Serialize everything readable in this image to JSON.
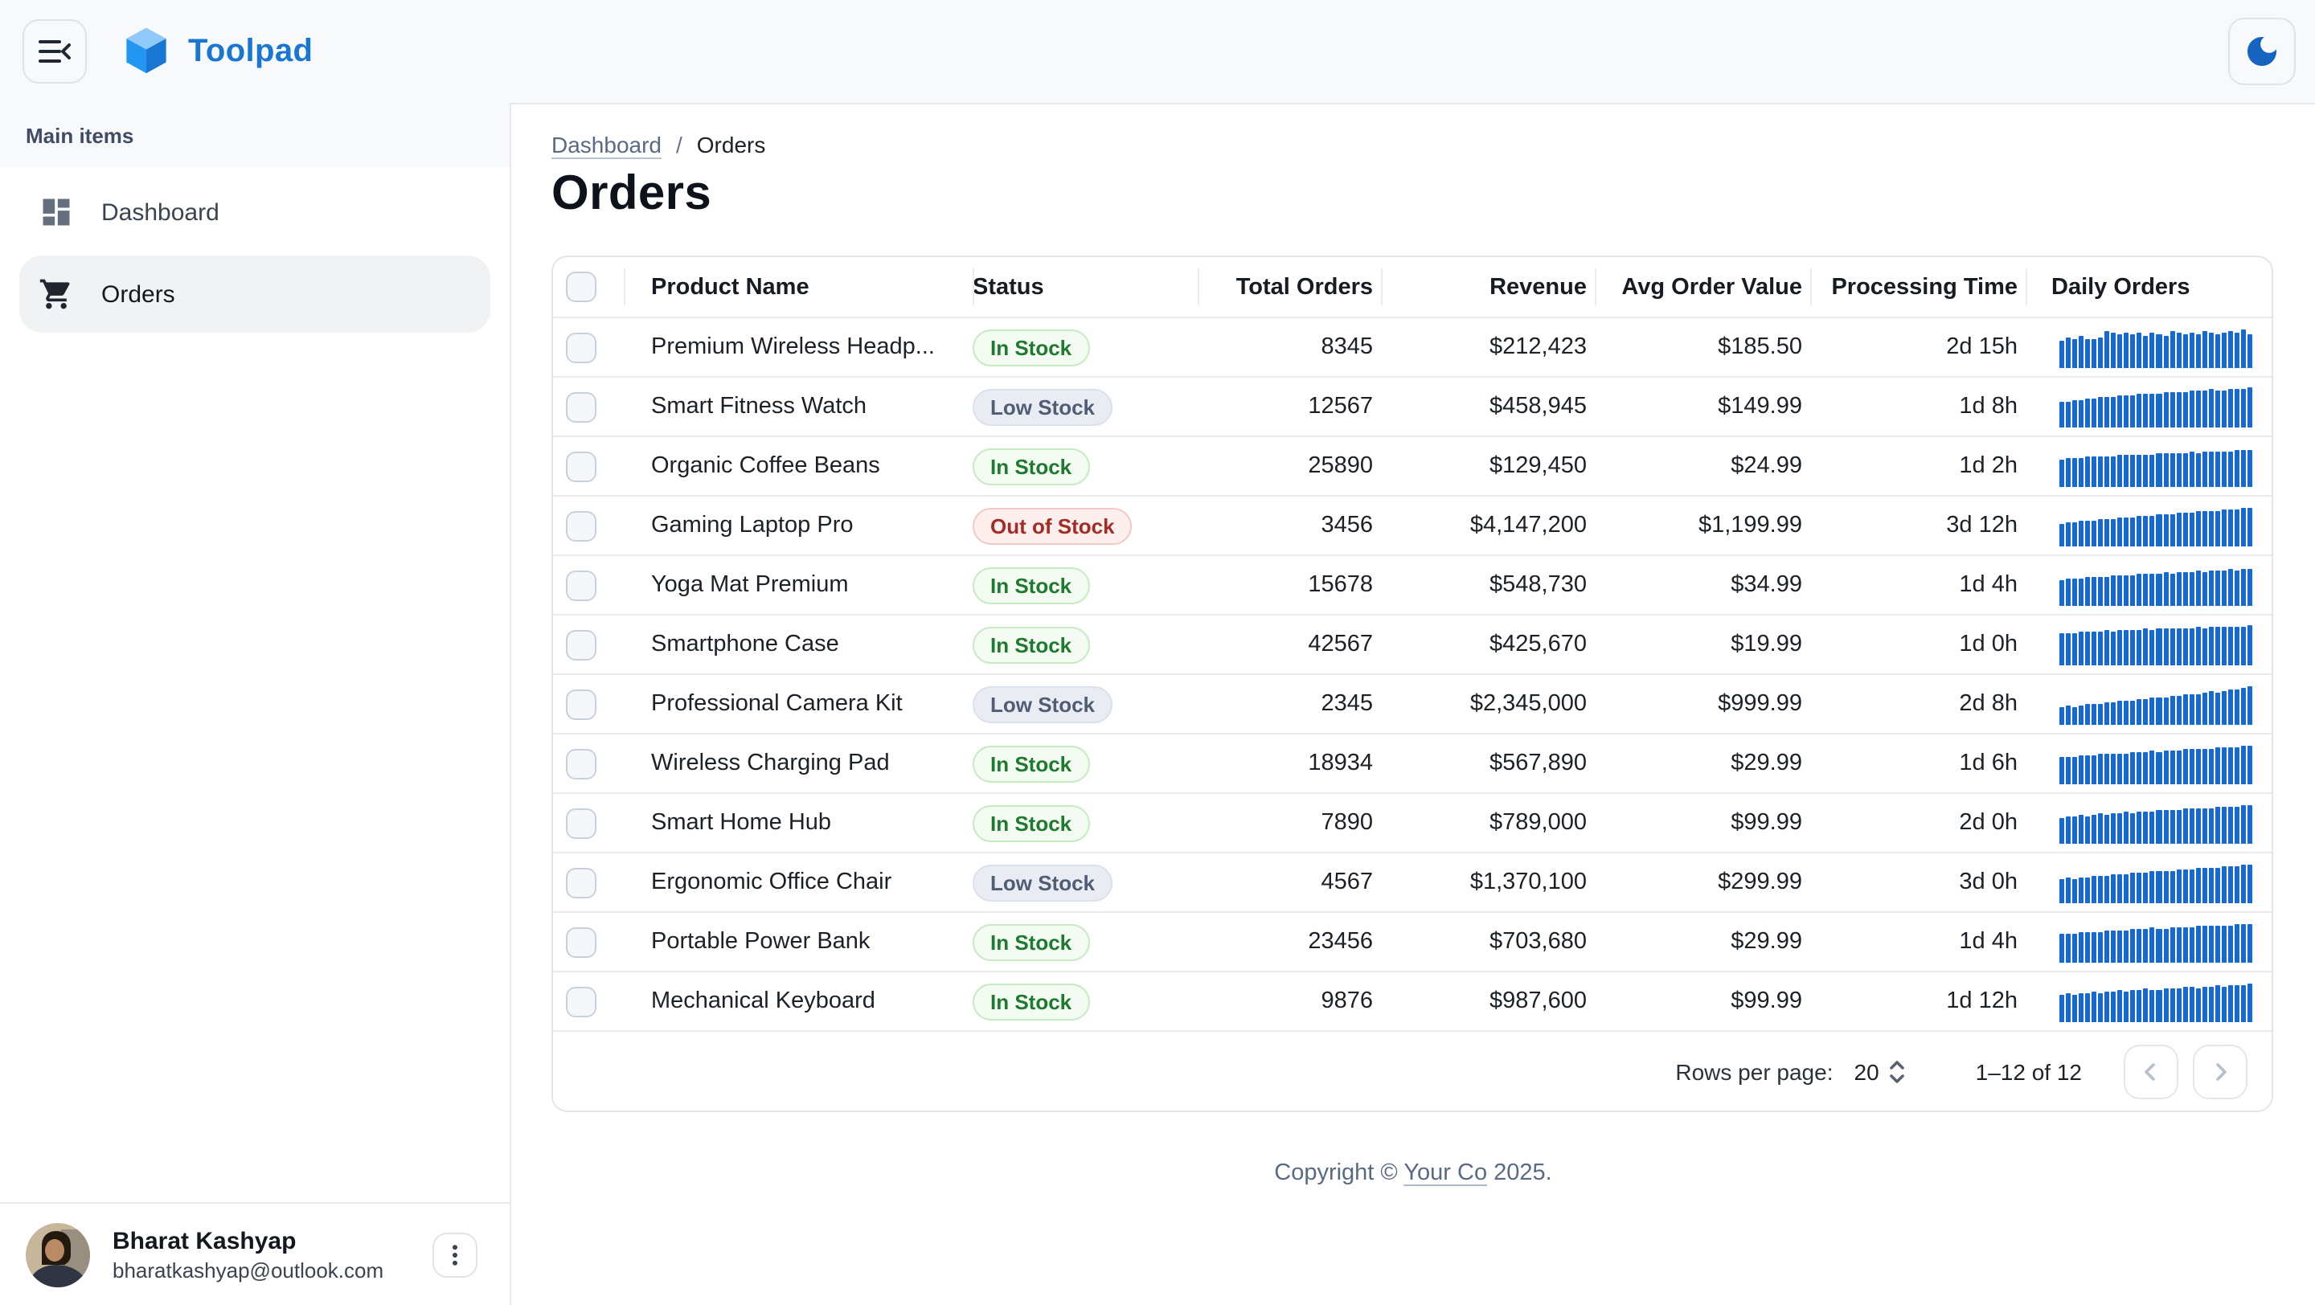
{
  "header": {
    "app_title": "Toolpad"
  },
  "sidebar": {
    "section_label": "Main items",
    "items": [
      {
        "label": "Dashboard",
        "icon": "dashboard-icon",
        "selected": false
      },
      {
        "label": "Orders",
        "icon": "cart-icon",
        "selected": true
      }
    ],
    "user": {
      "name": "Bharat Kashyap",
      "email": "bharatkashyap@outlook.com"
    }
  },
  "breadcrumb": {
    "parent": "Dashboard",
    "separator": "/",
    "current": "Orders"
  },
  "page": {
    "title": "Orders"
  },
  "table": {
    "columns": [
      "Product Name",
      "Status",
      "Total Orders",
      "Revenue",
      "Avg Order Value",
      "Processing Time",
      "Daily Orders"
    ],
    "rows": [
      {
        "product": "Premium Wireless Headp...",
        "status": "In Stock",
        "status_variant": "success",
        "total_orders": "8345",
        "revenue": "$212,423",
        "avg_order_value": "$185.50",
        "processing_time": "2d 15h",
        "spark": [
          0.66,
          0.74,
          0.7,
          0.78,
          0.72,
          0.7,
          0.76,
          0.92,
          0.88,
          0.84,
          0.86,
          0.82,
          0.85,
          0.8,
          0.88,
          0.84,
          0.79,
          0.9,
          0.85,
          0.81,
          0.87,
          0.83,
          0.89,
          0.86,
          0.82,
          0.86,
          0.92,
          0.88,
          0.94,
          0.84
        ]
      },
      {
        "product": "Smart Fitness Watch",
        "status": "Low Stock",
        "status_variant": "neutral",
        "total_orders": "12567",
        "revenue": "$458,945",
        "avg_order_value": "$149.99",
        "processing_time": "1d 8h",
        "spark": [
          0.62,
          0.64,
          0.66,
          0.65,
          0.7,
          0.72,
          0.74,
          0.73,
          0.76,
          0.78,
          0.77,
          0.8,
          0.82,
          0.81,
          0.84,
          0.83,
          0.86,
          0.85,
          0.88,
          0.87,
          0.9,
          0.89,
          0.91,
          0.93,
          0.9,
          0.92,
          0.94,
          0.93,
          0.96,
          0.98
        ]
      },
      {
        "product": "Organic Coffee Beans",
        "status": "In Stock",
        "status_variant": "success",
        "total_orders": "25890",
        "revenue": "$129,450",
        "avg_order_value": "$24.99",
        "processing_time": "1d 2h",
        "spark": [
          0.68,
          0.7,
          0.69,
          0.72,
          0.74,
          0.73,
          0.75,
          0.74,
          0.76,
          0.78,
          0.77,
          0.79,
          0.78,
          0.8,
          0.79,
          0.81,
          0.83,
          0.82,
          0.84,
          0.83,
          0.85,
          0.84,
          0.86,
          0.88,
          0.85,
          0.87,
          0.86,
          0.89,
          0.91,
          0.9
        ]
      },
      {
        "product": "Gaming Laptop Pro",
        "status": "Out of Stock",
        "status_variant": "danger",
        "total_orders": "3456",
        "revenue": "$4,147,200",
        "avg_order_value": "$1,199.99",
        "processing_time": "3d 12h",
        "spark": [
          0.55,
          0.58,
          0.6,
          0.62,
          0.61,
          0.64,
          0.66,
          0.65,
          0.68,
          0.7,
          0.72,
          0.71,
          0.74,
          0.76,
          0.75,
          0.78,
          0.8,
          0.79,
          0.82,
          0.84,
          0.83,
          0.86,
          0.85,
          0.88,
          0.87,
          0.9,
          0.89,
          0.92,
          0.94,
          0.96
        ]
      },
      {
        "product": "Yoga Mat Premium",
        "status": "In Stock",
        "status_variant": "success",
        "total_orders": "15678",
        "revenue": "$548,730",
        "avg_order_value": "$34.99",
        "processing_time": "1d 4h",
        "spark": [
          0.64,
          0.66,
          0.65,
          0.68,
          0.7,
          0.69,
          0.72,
          0.71,
          0.73,
          0.75,
          0.74,
          0.76,
          0.78,
          0.77,
          0.79,
          0.78,
          0.81,
          0.8,
          0.82,
          0.84,
          0.83,
          0.85,
          0.84,
          0.86,
          0.88,
          0.87,
          0.89,
          0.88,
          0.9,
          0.92
        ]
      },
      {
        "product": "Smartphone Case",
        "status": "In Stock",
        "status_variant": "success",
        "total_orders": "42567",
        "revenue": "$425,670",
        "avg_order_value": "$19.99",
        "processing_time": "1d 0h",
        "spark": [
          0.78,
          0.8,
          0.79,
          0.82,
          0.81,
          0.84,
          0.83,
          0.85,
          0.84,
          0.86,
          0.88,
          0.87,
          0.86,
          0.89,
          0.88,
          0.9,
          0.89,
          0.91,
          0.9,
          0.92,
          0.91,
          0.93,
          0.92,
          0.94,
          0.93,
          0.95,
          0.94,
          0.96,
          0.95,
          0.97
        ]
      },
      {
        "product": "Professional Camera Kit",
        "status": "Low Stock",
        "status_variant": "neutral",
        "total_orders": "2345",
        "revenue": "$2,345,000",
        "avg_order_value": "$999.99",
        "processing_time": "2d 8h",
        "spark": [
          0.42,
          0.45,
          0.44,
          0.48,
          0.5,
          0.52,
          0.51,
          0.55,
          0.54,
          0.58,
          0.6,
          0.59,
          0.63,
          0.62,
          0.66,
          0.68,
          0.67,
          0.71,
          0.7,
          0.74,
          0.76,
          0.75,
          0.79,
          0.81,
          0.8,
          0.84,
          0.86,
          0.88,
          0.92,
          0.96
        ]
      },
      {
        "product": "Wireless Charging Pad",
        "status": "In Stock",
        "status_variant": "success",
        "total_orders": "18934",
        "revenue": "$567,890",
        "avg_order_value": "$29.99",
        "processing_time": "1d 6h",
        "spark": [
          0.66,
          0.68,
          0.67,
          0.7,
          0.72,
          0.71,
          0.73,
          0.75,
          0.74,
          0.76,
          0.75,
          0.78,
          0.8,
          0.79,
          0.81,
          0.8,
          0.83,
          0.82,
          0.84,
          0.86,
          0.85,
          0.87,
          0.86,
          0.88,
          0.9,
          0.89,
          0.91,
          0.9,
          0.93,
          0.95
        ]
      },
      {
        "product": "Smart Home Hub",
        "status": "In Stock",
        "status_variant": "success",
        "total_orders": "7890",
        "revenue": "$789,000",
        "avg_order_value": "$99.99",
        "processing_time": "2d 0h",
        "spark": [
          0.64,
          0.67,
          0.66,
          0.69,
          0.68,
          0.71,
          0.73,
          0.72,
          0.75,
          0.74,
          0.77,
          0.76,
          0.79,
          0.78,
          0.8,
          0.82,
          0.81,
          0.84,
          0.83,
          0.85,
          0.87,
          0.86,
          0.88,
          0.87,
          0.9,
          0.89,
          0.92,
          0.91,
          0.94,
          0.93
        ]
      },
      {
        "product": "Ergonomic Office Chair",
        "status": "Low Stock",
        "status_variant": "neutral",
        "total_orders": "4567",
        "revenue": "$1,370,100",
        "avg_order_value": "$299.99",
        "processing_time": "3d 0h",
        "spark": [
          0.58,
          0.61,
          0.6,
          0.64,
          0.63,
          0.66,
          0.68,
          0.67,
          0.7,
          0.72,
          0.71,
          0.74,
          0.73,
          0.76,
          0.78,
          0.77,
          0.8,
          0.79,
          0.82,
          0.84,
          0.83,
          0.86,
          0.85,
          0.88,
          0.87,
          0.9,
          0.92,
          0.91,
          0.94,
          0.96
        ]
      },
      {
        "product": "Portable Power Bank",
        "status": "In Stock",
        "status_variant": "success",
        "total_orders": "23456",
        "revenue": "$703,680",
        "avg_order_value": "$29.99",
        "processing_time": "1d 4h",
        "spark": [
          0.7,
          0.72,
          0.71,
          0.74,
          0.73,
          0.76,
          0.75,
          0.78,
          0.8,
          0.79,
          0.78,
          0.81,
          0.83,
          0.82,
          0.85,
          0.84,
          0.83,
          0.86,
          0.88,
          0.87,
          0.86,
          0.89,
          0.91,
          0.9,
          0.89,
          0.92,
          0.91,
          0.93,
          0.95,
          0.94
        ]
      },
      {
        "product": "Mechanical Keyboard",
        "status": "In Stock",
        "status_variant": "success",
        "total_orders": "9876",
        "revenue": "$987,600",
        "avg_order_value": "$99.99",
        "processing_time": "1d 12h",
        "spark": [
          0.66,
          0.69,
          0.68,
          0.71,
          0.7,
          0.73,
          0.72,
          0.75,
          0.74,
          0.77,
          0.76,
          0.79,
          0.78,
          0.81,
          0.8,
          0.79,
          0.82,
          0.84,
          0.83,
          0.86,
          0.85,
          0.84,
          0.87,
          0.86,
          0.89,
          0.88,
          0.91,
          0.9,
          0.92,
          0.94
        ]
      }
    ]
  },
  "pagination": {
    "rows_per_page_label": "Rows per page:",
    "rows_per_page_value": "20",
    "range_label": "1–12 of 12"
  },
  "footer": {
    "prefix": "Copyright © ",
    "link": "Your Co",
    "suffix": " 2025."
  },
  "colors": {
    "accent": "#1976D2",
    "spark_bar": "#1669CE",
    "moon_icon": "#1565C0",
    "chip_success_text": "#1E7A2E",
    "chip_neutral_text": "#505D75",
    "chip_danger_text": "#A32C24"
  }
}
